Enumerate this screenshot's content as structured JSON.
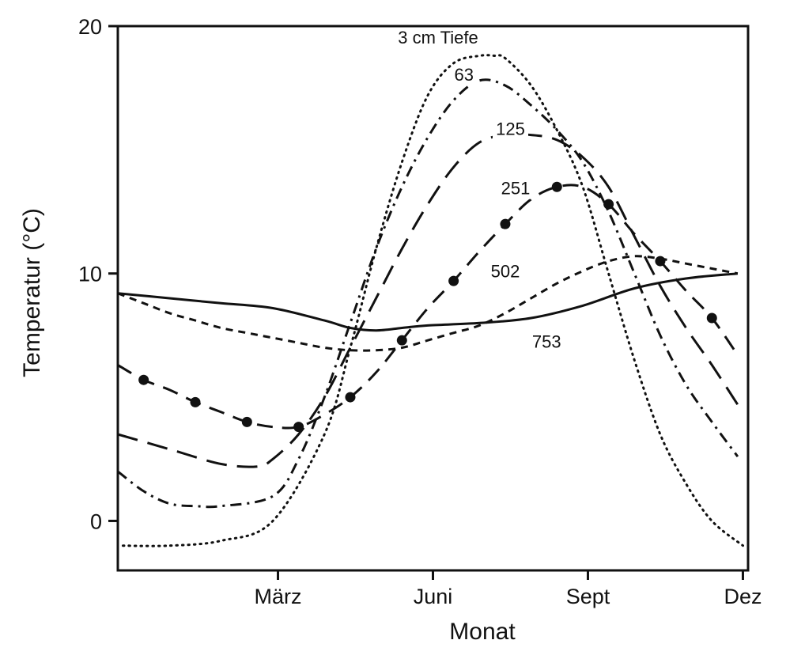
{
  "chart_data": {
    "type": "line",
    "xlabel": "Monat",
    "ylabel": "Temperatur (°C)",
    "xlim": [
      0,
      12.2
    ],
    "ylim": [
      -2,
      20
    ],
    "x_ticks": [
      {
        "x": 3.1,
        "label": "März"
      },
      {
        "x": 6.1,
        "label": "Juni"
      },
      {
        "x": 9.1,
        "label": "Sept"
      },
      {
        "x": 12.1,
        "label": "Dez"
      }
    ],
    "y_ticks": [
      {
        "y": 0,
        "label": "0"
      },
      {
        "y": 10,
        "label": "10"
      },
      {
        "y": 20,
        "label": "20"
      }
    ],
    "series": [
      {
        "name": "3 cm Tiefe",
        "style": "dotted",
        "label_at": [
          6.2,
          19.3
        ],
        "x": [
          0.1,
          1.0,
          2.0,
          3.0,
          4.0,
          4.5,
          5.0,
          5.5,
          6.0,
          6.5,
          7.0,
          7.3,
          7.5,
          8.0,
          8.5,
          9.0,
          9.5,
          10.0,
          10.5,
          11.0,
          11.5,
          12.1
        ],
        "y": [
          -1.0,
          -1.0,
          -0.8,
          0.0,
          3.5,
          7.0,
          11.0,
          14.5,
          17.2,
          18.5,
          18.8,
          18.8,
          18.7,
          17.6,
          15.8,
          13.5,
          10.0,
          6.5,
          3.5,
          1.5,
          0.0,
          -1.0
        ]
      },
      {
        "name": "63",
        "style": "dashdot",
        "label_at": [
          6.7,
          17.8
        ],
        "x": [
          0.0,
          0.5,
          1.0,
          1.5,
          2.0,
          3.0,
          3.5,
          4.0,
          4.5,
          5.0,
          5.5,
          6.0,
          6.5,
          7.0,
          7.5,
          8.0,
          8.5,
          9.0,
          9.5,
          10.0,
          10.5,
          11.0,
          11.5,
          12.0
        ],
        "y": [
          2.0,
          1.2,
          0.7,
          0.6,
          0.6,
          1.0,
          2.5,
          5.0,
          8.0,
          11.0,
          13.5,
          15.5,
          17.0,
          17.8,
          17.6,
          16.8,
          15.8,
          14.5,
          12.5,
          10.0,
          7.5,
          5.5,
          4.0,
          2.6
        ]
      },
      {
        "name": "125",
        "style": "dashed",
        "label_at": [
          7.6,
          15.6
        ],
        "x": [
          0.0,
          1.0,
          2.0,
          2.7,
          3.0,
          3.5,
          4.0,
          4.5,
          5.0,
          5.5,
          6.0,
          6.5,
          7.0,
          7.5,
          8.0,
          8.5,
          9.0,
          9.5,
          10.0,
          10.5,
          11.0,
          11.5,
          12.0
        ],
        "y": [
          3.5,
          2.9,
          2.3,
          2.2,
          2.5,
          3.5,
          5.0,
          7.0,
          9.0,
          11.0,
          12.8,
          14.3,
          15.3,
          15.6,
          15.6,
          15.4,
          14.7,
          13.5,
          11.5,
          9.5,
          7.8,
          6.3,
          4.7
        ]
      },
      {
        "name": "251",
        "style": "long-dash-dots",
        "label_at": [
          7.7,
          13.2
        ],
        "x": [
          0.0,
          0.5,
          1.0,
          1.5,
          2.0,
          2.5,
          3.0,
          3.5,
          4.0,
          4.5,
          5.0,
          5.5,
          6.0,
          6.5,
          7.0,
          7.5,
          8.0,
          8.5,
          9.0,
          9.5,
          10.0,
          10.5,
          11.0,
          11.5,
          12.0
        ],
        "y": [
          6.3,
          5.7,
          5.3,
          4.8,
          4.4,
          4.0,
          3.8,
          3.8,
          4.3,
          5.0,
          6.0,
          7.3,
          8.6,
          9.7,
          10.9,
          12.0,
          13.0,
          13.5,
          13.5,
          12.8,
          11.6,
          10.5,
          9.3,
          8.2,
          6.7
        ]
      },
      {
        "name": "502",
        "style": "short-dash",
        "label_at": [
          7.5,
          9.85
        ],
        "x": [
          0.0,
          0.5,
          1.0,
          1.5,
          2.0,
          2.5,
          3.0,
          3.5,
          4.0,
          4.5,
          5.0,
          5.5,
          6.0,
          6.5,
          7.0,
          7.5,
          8.0,
          8.5,
          9.0,
          9.5,
          10.0,
          10.5,
          11.0,
          11.5,
          12.0
        ],
        "y": [
          9.2,
          8.8,
          8.4,
          8.1,
          7.8,
          7.6,
          7.4,
          7.2,
          7.0,
          6.9,
          6.9,
          7.0,
          7.3,
          7.6,
          7.9,
          8.4,
          9.0,
          9.6,
          10.1,
          10.5,
          10.7,
          10.6,
          10.4,
          10.2,
          10.0
        ]
      },
      {
        "name": "753",
        "style": "solid",
        "label_at": [
          8.3,
          7.0
        ],
        "x": [
          0.0,
          1.0,
          2.0,
          3.0,
          4.0,
          4.5,
          5.0,
          5.5,
          6.0,
          7.0,
          8.0,
          9.0,
          10.0,
          11.0,
          12.0
        ],
        "y": [
          9.2,
          9.0,
          8.8,
          8.6,
          8.1,
          7.8,
          7.7,
          7.8,
          7.9,
          8.0,
          8.2,
          8.7,
          9.4,
          9.8,
          10.0
        ]
      }
    ]
  }
}
